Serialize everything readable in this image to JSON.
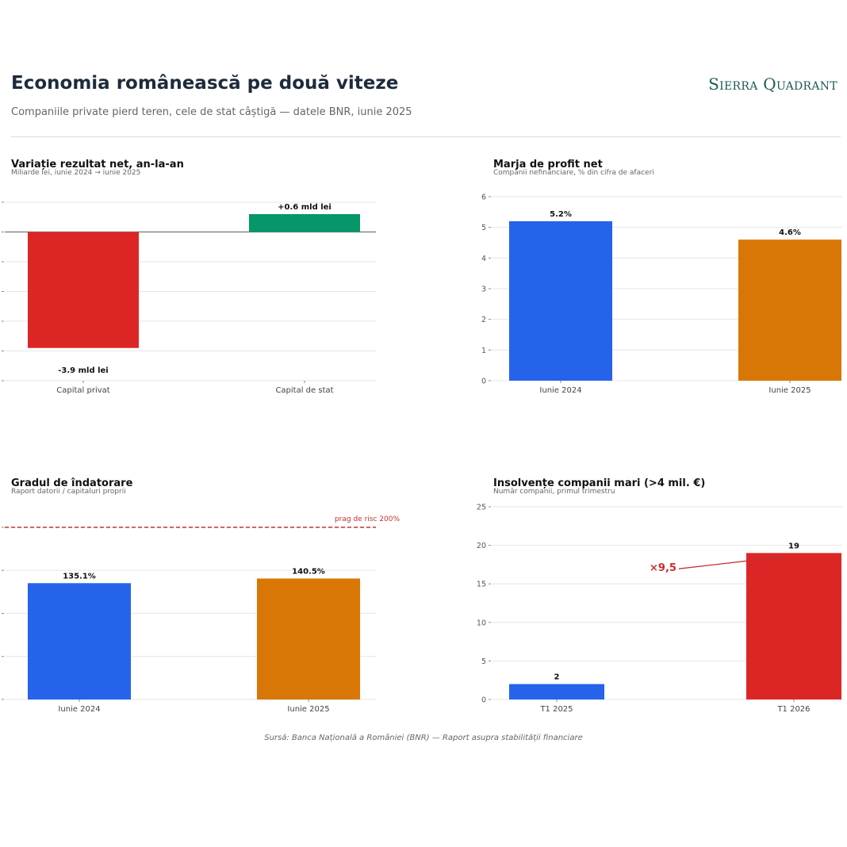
{
  "header": {
    "title": "Economia românească pe două viteze",
    "subtitle": "Companiile private pierd teren, cele de stat câștigă — datele BNR, iunie 2025",
    "brand": "Sierra Quadrant"
  },
  "footer": {
    "source": "Sursă: Banca Națională a României (BNR) — Raport asupra stabilității financiare"
  },
  "chart_data": [
    {
      "type": "bar",
      "title": "Variație rezultat net, an-la-an",
      "subtitle": "Miliarde lei, iunie 2024 → iunie 2025",
      "categories": [
        "Capital privat",
        "Capital de stat"
      ],
      "values": [
        -3.9,
        0.6
      ],
      "data_labels": [
        "-3.9 mld lei",
        "+0.6 mld lei"
      ],
      "colors": [
        "#dc2626",
        "#059669"
      ],
      "ylim": [
        -5,
        1
      ],
      "zero_line": true,
      "grid": true
    },
    {
      "type": "bar",
      "title": "Marja de profit net",
      "subtitle": "Companii nefinanciare, % din cifra de afaceri",
      "categories": [
        "Iunie 2024",
        "Iunie 2025"
      ],
      "values": [
        5.2,
        4.6
      ],
      "data_labels": [
        "5.2%",
        "4.6%"
      ],
      "colors": [
        "#2563eb",
        "#d97706"
      ],
      "yticks": [
        0,
        1,
        2,
        3,
        4,
        5,
        6
      ],
      "ylim": [
        0,
        6
      ],
      "grid": true
    },
    {
      "type": "bar",
      "title": "Gradul de îndatorare",
      "subtitle": "Raport datorii / capitaluri proprii",
      "categories": [
        "Iunie 2024",
        "Iunie 2025"
      ],
      "values": [
        135.1,
        140.5
      ],
      "data_labels": [
        "135.1%",
        "140.5%"
      ],
      "colors": [
        "#2563eb",
        "#d97706"
      ],
      "ylim": [
        0,
        210
      ],
      "grid": true,
      "threshold": {
        "value": 200,
        "label": "prag de risc 200%",
        "color": "#c53030"
      }
    },
    {
      "type": "bar",
      "title": "Insolvențe companii mari (>4 mil. €)",
      "subtitle": "Număr companii, primul trimestru",
      "categories": [
        "T1 2025",
        "T1 2026"
      ],
      "values": [
        2,
        19
      ],
      "data_labels": [
        "2",
        "19"
      ],
      "colors": [
        "#2563eb",
        "#dc2626"
      ],
      "yticks": [
        0,
        5,
        10,
        15,
        20,
        25
      ],
      "ylim": [
        0,
        25
      ],
      "grid": true,
      "annotation": {
        "text": "×9,5",
        "color": "#c53030"
      }
    }
  ]
}
